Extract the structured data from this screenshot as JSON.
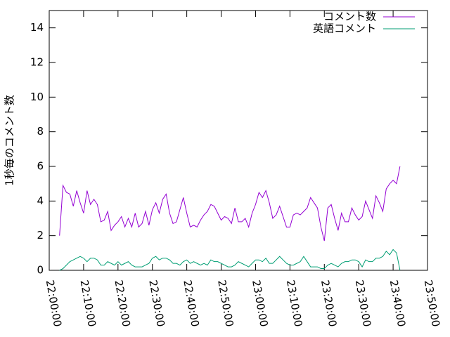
{
  "chart_data": {
    "type": "line",
    "ylabel": "1秒毎のコメント数",
    "x": [
      "22:03:00",
      "22:04:00",
      "22:05:00",
      "22:06:00",
      "22:07:00",
      "22:08:00",
      "22:09:00",
      "22:10:00",
      "22:11:00",
      "22:12:00",
      "22:13:00",
      "22:14:00",
      "22:15:00",
      "22:16:00",
      "22:17:00",
      "22:18:00",
      "22:19:00",
      "22:20:00",
      "22:21:00",
      "22:22:00",
      "22:23:00",
      "22:24:00",
      "22:25:00",
      "22:26:00",
      "22:27:00",
      "22:28:00",
      "22:29:00",
      "22:30:00",
      "22:31:00",
      "22:32:00",
      "22:33:00",
      "22:34:00",
      "22:35:00",
      "22:36:00",
      "22:37:00",
      "22:38:00",
      "22:39:00",
      "22:40:00",
      "22:41:00",
      "22:42:00",
      "22:43:00",
      "22:44:00",
      "22:45:00",
      "22:46:00",
      "22:47:00",
      "22:48:00",
      "22:49:00",
      "22:50:00",
      "22:51:00",
      "22:52:00",
      "22:53:00",
      "22:54:00",
      "22:55:00",
      "22:56:00",
      "22:57:00",
      "22:58:00",
      "22:59:00",
      "23:00:00",
      "23:01:00",
      "23:02:00",
      "23:03:00",
      "23:04:00",
      "23:05:00",
      "23:06:00",
      "23:07:00",
      "23:08:00",
      "23:09:00",
      "23:10:00",
      "23:11:00",
      "23:12:00",
      "23:13:00",
      "23:14:00",
      "23:15:00",
      "23:16:00",
      "23:17:00",
      "23:18:00",
      "23:19:00",
      "23:20:00",
      "23:21:00",
      "23:22:00",
      "23:23:00",
      "23:24:00",
      "23:25:00",
      "23:26:00",
      "23:27:00",
      "23:28:00",
      "23:29:00",
      "23:30:00",
      "23:31:00",
      "23:32:00",
      "23:33:00",
      "23:34:00",
      "23:35:00",
      "23:36:00",
      "23:37:00",
      "23:38:00",
      "23:39:00",
      "23:40:00",
      "23:41:00",
      "23:42:00"
    ],
    "series": [
      {
        "name": "コメント数",
        "color": "#9400d3",
        "values": [
          2.0,
          4.9,
          4.5,
          4.4,
          3.7,
          4.6,
          3.9,
          3.3,
          4.6,
          3.8,
          4.1,
          3.8,
          2.8,
          2.9,
          3.4,
          2.3,
          2.6,
          2.8,
          3.1,
          2.5,
          3.0,
          2.5,
          3.3,
          2.5,
          2.7,
          3.4,
          2.6,
          3.5,
          3.9,
          3.3,
          4.1,
          4.4,
          3.3,
          2.7,
          2.8,
          3.5,
          4.2,
          3.3,
          2.5,
          2.6,
          2.5,
          2.9,
          3.2,
          3.4,
          3.8,
          3.7,
          3.3,
          2.9,
          3.1,
          3.0,
          2.7,
          3.6,
          2.8,
          2.8,
          3.0,
          2.5,
          3.3,
          3.8,
          4.5,
          4.2,
          4.6,
          3.9,
          3.0,
          3.2,
          3.7,
          3.1,
          2.5,
          2.5,
          3.2,
          3.3,
          3.2,
          3.4,
          3.6,
          4.2,
          3.9,
          3.6,
          2.5,
          1.7,
          3.6,
          3.8,
          3.0,
          2.3,
          3.3,
          2.8,
          2.8,
          3.6,
          3.2,
          2.9,
          3.1,
          4.0,
          3.5,
          3.0,
          4.3,
          3.9,
          3.4,
          4.7,
          5.0,
          5.2,
          5.0,
          6.0
        ]
      },
      {
        "name": "英語コメント",
        "color": "#009e73",
        "values": [
          0.0,
          0.1,
          0.3,
          0.5,
          0.6,
          0.7,
          0.8,
          0.7,
          0.5,
          0.7,
          0.7,
          0.6,
          0.3,
          0.3,
          0.5,
          0.4,
          0.3,
          0.5,
          0.3,
          0.4,
          0.5,
          0.3,
          0.2,
          0.2,
          0.2,
          0.3,
          0.4,
          0.7,
          0.8,
          0.6,
          0.7,
          0.7,
          0.6,
          0.4,
          0.4,
          0.3,
          0.5,
          0.6,
          0.4,
          0.5,
          0.4,
          0.3,
          0.4,
          0.3,
          0.6,
          0.5,
          0.5,
          0.4,
          0.3,
          0.2,
          0.2,
          0.3,
          0.5,
          0.4,
          0.3,
          0.2,
          0.4,
          0.6,
          0.6,
          0.5,
          0.7,
          0.4,
          0.4,
          0.6,
          0.8,
          0.6,
          0.4,
          0.3,
          0.3,
          0.4,
          0.5,
          0.8,
          0.5,
          0.2,
          0.2,
          0.2,
          0.1,
          0.1,
          0.3,
          0.4,
          0.3,
          0.2,
          0.4,
          0.5,
          0.5,
          0.6,
          0.6,
          0.5,
          0.2,
          0.6,
          0.5,
          0.5,
          0.7,
          0.7,
          0.8,
          1.1,
          0.9,
          1.2,
          1.0,
          0.0
        ]
      }
    ],
    "xlim": [
      "22:00:00",
      "23:50:00"
    ],
    "xticks": [
      "22:00:00",
      "22:10:00",
      "22:20:00",
      "22:30:00",
      "22:40:00",
      "22:50:00",
      "23:00:00",
      "23:10:00",
      "23:20:00",
      "23:30:00",
      "23:40:00",
      "23:50:00"
    ],
    "ylim": [
      0,
      15
    ],
    "yticks": [
      0,
      2,
      4,
      6,
      8,
      10,
      12,
      14
    ],
    "grid": false,
    "legend": "top-right"
  }
}
